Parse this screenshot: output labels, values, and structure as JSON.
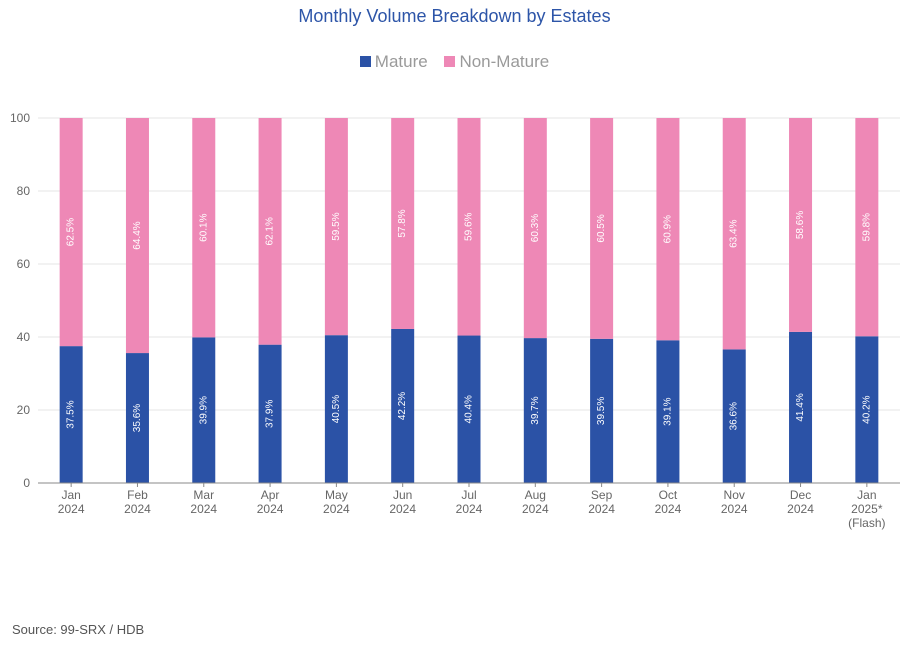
{
  "chart_data": {
    "type": "bar",
    "stacked": true,
    "title": "Monthly Volume Breakdown by Estates",
    "categories": [
      [
        "Jan",
        "2024"
      ],
      [
        "Feb",
        "2024"
      ],
      [
        "Mar",
        "2024"
      ],
      [
        "Apr",
        "2024"
      ],
      [
        "May",
        "2024"
      ],
      [
        "Jun",
        "2024"
      ],
      [
        "Jul",
        "2024"
      ],
      [
        "Aug",
        "2024"
      ],
      [
        "Sep",
        "2024"
      ],
      [
        "Oct",
        "2024"
      ],
      [
        "Nov",
        "2024"
      ],
      [
        "Dec",
        "2024"
      ],
      [
        "Jan",
        "2025*",
        "(Flash)"
      ]
    ],
    "series": [
      {
        "name": "Mature",
        "color": "#2b52a6",
        "values": [
          37.5,
          35.6,
          39.9,
          37.9,
          40.5,
          42.2,
          40.4,
          39.7,
          39.5,
          39.1,
          36.6,
          41.4,
          40.2
        ],
        "labels": [
          "37.5%",
          "35.6%",
          "39.9%",
          "37.9%",
          "40.5%",
          "42.2%",
          "40.4%",
          "39.7%",
          "39.5%",
          "39.1%",
          "36.6%",
          "41.4%",
          "40.2%"
        ]
      },
      {
        "name": "Non-Mature",
        "color": "#ee88b6",
        "values": [
          62.5,
          64.4,
          60.1,
          62.1,
          59.5,
          57.8,
          59.6,
          60.3,
          60.5,
          60.9,
          63.4,
          58.6,
          59.8
        ],
        "labels": [
          "62.5%",
          "64.4%",
          "60.1%",
          "62.1%",
          "59.5%",
          "57.8%",
          "59.6%",
          "60.3%",
          "60.5%",
          "60.9%",
          "63.4%",
          "58.6%",
          "59.8%"
        ]
      }
    ],
    "ylim": [
      0,
      100
    ],
    "yticks": [
      "0",
      "20",
      "40",
      "60",
      "80",
      "100"
    ],
    "ytick_values": [
      0,
      20,
      40,
      60,
      80,
      100
    ],
    "grid": true,
    "legend_position": "top-center",
    "xlabel": "",
    "ylabel": ""
  },
  "legend": {
    "mature_label": "Mature",
    "non_mature_label": "Non-Mature",
    "mature_color": "#2b52a6",
    "non_mature_color": "#ee88b6"
  },
  "footer": {
    "source": "Source: 99-SRX / HDB"
  }
}
